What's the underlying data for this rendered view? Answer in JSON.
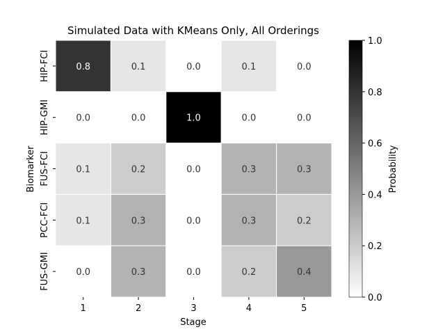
{
  "chart_data": {
    "type": "heatmap",
    "title": "Simulated Data with KMeans Only, All Orderings",
    "xlabel": "Stage",
    "ylabel": "Biomarker",
    "x_categories": [
      "1",
      "2",
      "3",
      "4",
      "5"
    ],
    "y_categories": [
      "HIP-FCI",
      "HIP-GMI",
      "FUS-FCI",
      "PCC-FCI",
      "FUS-GMI"
    ],
    "values": [
      [
        0.8,
        0.1,
        0.0,
        0.1,
        0.0
      ],
      [
        0.0,
        0.0,
        1.0,
        0.0,
        0.0
      ],
      [
        0.1,
        0.2,
        0.0,
        0.3,
        0.3
      ],
      [
        0.1,
        0.3,
        0.0,
        0.3,
        0.2
      ],
      [
        0.0,
        0.3,
        0.0,
        0.2,
        0.4
      ]
    ],
    "value_labels": [
      [
        "0.8",
        "0.1",
        "0.0",
        "0.1",
        "0.0"
      ],
      [
        "0.0",
        "0.0",
        "1.0",
        "0.0",
        "0.0"
      ],
      [
        "0.1",
        "0.2",
        "0.0",
        "0.3",
        "0.3"
      ],
      [
        "0.1",
        "0.3",
        "0.0",
        "0.3",
        "0.2"
      ],
      [
        "0.0",
        "0.3",
        "0.0",
        "0.2",
        "0.4"
      ]
    ],
    "colorbar": {
      "label": "Probability",
      "range": [
        0.0,
        1.0
      ],
      "ticks": [
        "0.0",
        "0.2",
        "0.4",
        "0.6",
        "0.8",
        "1.0"
      ],
      "colormap": "Greys"
    },
    "cell_border_color": "#ffffff",
    "grid": false
  }
}
